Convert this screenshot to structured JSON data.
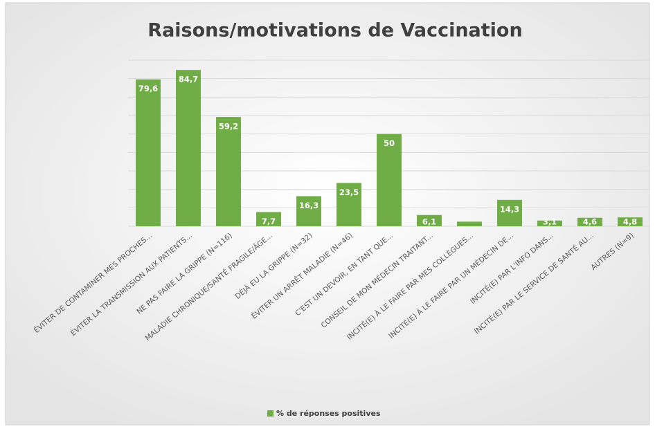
{
  "chart_data": {
    "type": "bar",
    "title": "Raisons/motivations de Vaccination",
    "categories": [
      "ÉVITER DE CONTAMINER MES PROCHES...",
      "ÉVITER LA TRANSMISSION AUX PATIENTS...",
      "NE PAS FAIRE LA GRIPPE (N=116)",
      "MALADIE CHRONIQUE/SANTÉ FRAGILE/ÂGE...",
      "DÉJÀ EU LA GRIPPE (N=32)",
      "ÉVITER UN ARRÊT MALADIE (N=46)",
      "C'EST UN DEVOIR, EN TANT QUE...",
      "CONSEIL DE MON MÉDECIN TRAITANT...",
      "INCITÉ(E) À LE FAIRE PAR MES COLLÈGUES...",
      "INCITÉ(E) À LE FAIRE PAR UN MÉDECIN DE...",
      "INCITÉ(E) PAR L'INFO DANS...",
      "INCITÉ(E) PAR LE SERVICE DE SANTÉ AU...",
      "AUTRES (N=9)"
    ],
    "series": [
      {
        "name": "% de réponses positives",
        "color": "#70ad47",
        "values": [
          79.6,
          84.7,
          59.2,
          7.7,
          16.3,
          23.5,
          50,
          6.1,
          2.5,
          14.3,
          3.1,
          4.6,
          4.8
        ],
        "value_labels": [
          "79,6",
          "84,7",
          "59,2",
          "7,7",
          "16,3",
          "23,5",
          "50",
          "6,1",
          null,
          "14,3",
          "3,1",
          "4,6",
          "4,8"
        ]
      }
    ],
    "ylim": [
      0,
      90
    ],
    "yticks": [
      0,
      10,
      20,
      30,
      40,
      50,
      60,
      70,
      80,
      90
    ],
    "grid": true
  }
}
